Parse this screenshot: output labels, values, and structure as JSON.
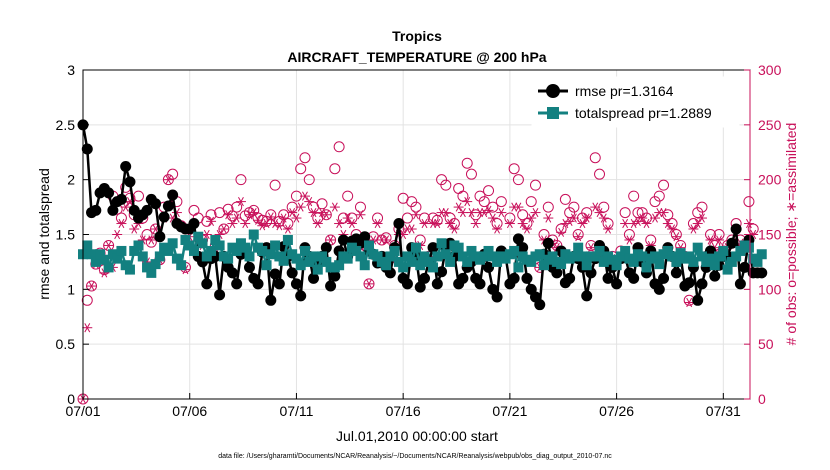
{
  "chart_data": {
    "type": "line",
    "title": "Tropics",
    "subtitle": "AIRCRAFT_TEMPERATURE @ 200 hPa",
    "xlabel": "Jul.01,2010 00:00:00 start",
    "ylabel_left": "rmse and totalspread",
    "ylabel_right": "# of obs: o=possible; ∗=assimilated",
    "footnote": "data file: /Users/gharamti/Documents/NCAR/Reanalysis/~/Documents/NCAR/Reanalysis/webpub/obs_diag_output_2010-07.nc",
    "x_tick_labels": [
      "07/01",
      "07/06",
      "07/11",
      "07/16",
      "07/21",
      "07/26",
      "07/31"
    ],
    "x_tick_days": [
      1,
      6,
      11,
      16,
      21,
      26,
      31
    ],
    "xlim": [
      1,
      32.25
    ],
    "ylim_left": [
      0,
      3
    ],
    "yticks_left": [
      "0",
      "0.5",
      "1",
      "1.5",
      "2",
      "2.5",
      "3"
    ],
    "ylim_right": [
      0,
      300
    ],
    "yticks_right": [
      "0",
      "50",
      "100",
      "150",
      "200",
      "250",
      "300"
    ],
    "grid": true,
    "legend_position": "top-right",
    "legend": [
      "rmse pr=1.3164",
      "totalspread pr=1.2889"
    ],
    "colors": {
      "rmse": "#000000",
      "totalspread": "#138080",
      "obs": "#c8105a",
      "axis": "#000000"
    },
    "series": [
      {
        "name": "rmse pr=1.3164",
        "axis": "left",
        "values": [
          2.5,
          2.28,
          1.7,
          1.72,
          1.88,
          1.92,
          1.88,
          1.72,
          1.8,
          1.82,
          2.12,
          1.98,
          1.72,
          1.65,
          1.68,
          1.72,
          1.82,
          1.78,
          1.48,
          1.66,
          1.76,
          1.86,
          1.6,
          1.57,
          1.55,
          1.55,
          1.6,
          1.3,
          1.25,
          1.05,
          1.28,
          1.3,
          0.95,
          1.3,
          1.2,
          1.15,
          1.05,
          1.32,
          1.36,
          1.2,
          1.1,
          1.05,
          1.34,
          1.38,
          0.9,
          1.14,
          1.05,
          1.39,
          1.3,
          1.15,
          1.05,
          0.94,
          1.38,
          1.3,
          1.1,
          1.25,
          1.3,
          1.38,
          1.03,
          1.12,
          1.35,
          1.45,
          1.3,
          1.44,
          1.46,
          1.42,
          1.48,
          1.35,
          1.32,
          1.24,
          1.3,
          1.2,
          1.15,
          1.38,
          1.6,
          1.1,
          1.05,
          1.38,
          1.3,
          1.02,
          1.1,
          1.25,
          1.38,
          1.05,
          1.16,
          1.38,
          1.42,
          1.3,
          1.05,
          1.1,
          1.2,
          1.25,
          1.1,
          1.05,
          1.32,
          1.2,
          1.0,
          0.93,
          1.35,
          1.3,
          1.05,
          1.1,
          1.46,
          1.38,
          1.1,
          1.0,
          0.93,
          0.86,
          1.32,
          1.42,
          1.2,
          1.15,
          1.35,
          1.06,
          1.1,
          1.3,
          1.28,
          1.2,
          0.94,
          1.15,
          1.28,
          1.4,
          1.35,
          1.1,
          1.2,
          1.05,
          1.28,
          1.3,
          1.15,
          1.1,
          1.38,
          1.25,
          1.15,
          1.35,
          1.05,
          1.0,
          1.1,
          1.38,
          1.3,
          1.15,
          1.3,
          1.03,
          1.06,
          1.2,
          0.9,
          1.05,
          1.2,
          1.35,
          1.12,
          1.22,
          1.3,
          1.3,
          1.42,
          1.55,
          1.05,
          1.2,
          1.45,
          1.15,
          1.15,
          1.15
        ]
      },
      {
        "name": "totalspread pr=1.2889",
        "axis": "left",
        "values": [
          1.32,
          1.4,
          1.32,
          1.25,
          1.32,
          1.27,
          1.2,
          1.32,
          1.28,
          1.35,
          1.22,
          1.18,
          1.35,
          1.4,
          1.3,
          1.2,
          1.15,
          1.23,
          1.3,
          1.38,
          1.35,
          1.42,
          1.28,
          1.22,
          1.45,
          1.4,
          1.35,
          1.48,
          1.42,
          1.3,
          1.35,
          1.45,
          1.4,
          1.3,
          1.28,
          1.38,
          1.35,
          1.42,
          1.38,
          1.3,
          1.5,
          1.38,
          1.35,
          1.22,
          1.32,
          1.4,
          1.3,
          1.26,
          1.45,
          1.32,
          1.28,
          1.22,
          1.35,
          1.25,
          1.3,
          1.18,
          1.3,
          1.25,
          1.2,
          1.2,
          1.22,
          1.3,
          1.28,
          1.38,
          1.35,
          1.3,
          1.22,
          1.4,
          1.32,
          1.3,
          1.25,
          1.22,
          1.3,
          1.35,
          1.25,
          1.2,
          1.3,
          1.25,
          1.38,
          1.22,
          1.3,
          1.25,
          1.2,
          1.3,
          1.42,
          1.32,
          1.25,
          1.4,
          1.38,
          1.3,
          1.25,
          1.35,
          1.3,
          1.27,
          1.3,
          1.35,
          1.3,
          1.25,
          1.3,
          1.28,
          1.32,
          1.35,
          1.2,
          1.3,
          1.27,
          1.25,
          1.3,
          1.32,
          1.22,
          1.27,
          1.3,
          1.25,
          1.23,
          1.32,
          1.28,
          1.3,
          1.38,
          1.3,
          1.22,
          1.3,
          1.3,
          1.35,
          1.25,
          1.3,
          1.27,
          1.22,
          1.3,
          1.35,
          1.28,
          1.25,
          1.32,
          1.3,
          1.2,
          1.28,
          1.3,
          1.23,
          1.32,
          1.35,
          1.3,
          1.25,
          1.33,
          1.28,
          1.3,
          1.25,
          1.38,
          1.3,
          1.25,
          1.28,
          1.22,
          1.3,
          1.35,
          1.18,
          1.25,
          1.3,
          1.35,
          1.4,
          1.38,
          1.28,
          1.25,
          1.32
        ]
      },
      {
        "name": "",
        "axis": "right",
        "marker": "circle",
        "values": [
          0,
          90,
          103,
          123,
          133,
          118,
          140,
          185,
          173,
          165,
          193,
          183,
          168,
          185,
          165,
          150,
          143,
          155,
          127,
          175,
          200,
          205,
          180,
          158,
          120,
          155,
          172,
          165,
          145,
          162,
          168,
          140,
          170,
          155,
          173,
          167,
          175,
          200,
          167,
          170,
          172,
          165,
          163,
          162,
          168,
          195,
          162,
          168,
          160,
          175,
          185,
          210,
          220,
          200,
          175,
          165,
          178,
          168,
          145,
          210,
          230,
          165,
          185,
          165,
          150,
          175,
          140,
          105,
          148,
          165,
          145,
          147,
          128,
          140,
          155,
          183,
          165,
          180,
          175,
          145,
          165,
          130,
          165,
          163,
          200,
          195,
          165,
          160,
          192,
          185,
          215,
          205,
          168,
          185,
          180,
          190,
          175,
          160,
          180,
          130,
          165,
          210,
          200,
          168,
          160,
          180,
          195,
          120,
          150,
          175,
          145,
          140,
          155,
          182,
          170,
          175,
          150,
          165,
          170,
          140,
          220,
          205,
          175,
          160,
          130,
          125,
          135,
          170,
          150,
          185,
          170,
          170,
          165,
          145,
          180,
          185,
          195,
          168,
          160,
          150,
          140,
          130,
          90,
          160,
          170,
          175,
          130,
          150,
          140,
          150,
          135,
          140,
          145,
          160,
          145,
          140,
          180,
          155
        ]
      },
      {
        "name": "",
        "axis": "right",
        "marker": "asterisk",
        "values": [
          0,
          65,
          103,
          123,
          130,
          115,
          140,
          120,
          150,
          160,
          175,
          180,
          155,
          160,
          145,
          125,
          145,
          155,
          127,
          165,
          200,
          165,
          170,
          158,
          118,
          148,
          160,
          145,
          140,
          150,
          162,
          138,
          150,
          155,
          168,
          160,
          165,
          180,
          160,
          168,
          170,
          163,
          158,
          160,
          166,
          160,
          158,
          165,
          155,
          170,
          165,
          175,
          185,
          180,
          170,
          160,
          170,
          168,
          145,
          175,
          160,
          150,
          165,
          160,
          145,
          168,
          140,
          105,
          145,
          160,
          145,
          145,
          128,
          135,
          150,
          150,
          155,
          155,
          168,
          140,
          160,
          130,
          160,
          160,
          170,
          170,
          160,
          155,
          175,
          170,
          180,
          170,
          160,
          170,
          170,
          172,
          165,
          155,
          170,
          128,
          160,
          175,
          175,
          160,
          155,
          165,
          170,
          120,
          145,
          165,
          142,
          138,
          152,
          160,
          162,
          165,
          148,
          160,
          165,
          138,
          175,
          170,
          165,
          155,
          128,
          122,
          130,
          160,
          145,
          160,
          162,
          165,
          160,
          140,
          165,
          170,
          170,
          160,
          155,
          148,
          138,
          128,
          88,
          155,
          160,
          165,
          128,
          145,
          138,
          145,
          132,
          138,
          142,
          155,
          142,
          138,
          160,
          150
        ]
      }
    ]
  }
}
